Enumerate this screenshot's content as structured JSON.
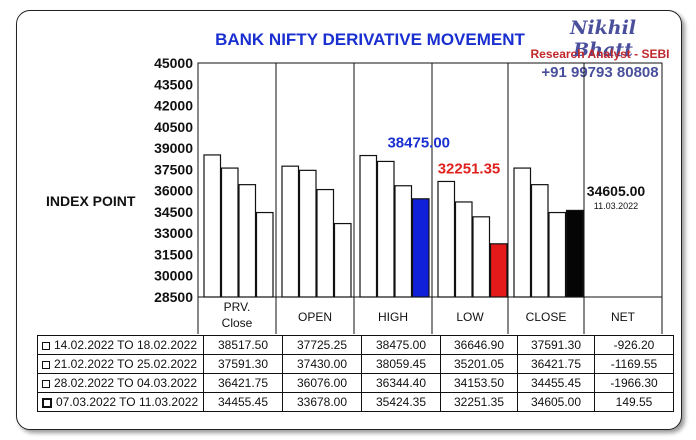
{
  "header": {
    "title": "BANK NIFTY DERIVATIVE MOVEMENT",
    "signature_name": "Nikhil Bhatt",
    "signature_role": "Research Analyst - SEBI",
    "signature_phone": "+91 99793 80808"
  },
  "chart_data": {
    "type": "bar",
    "title": "BANK NIFTY DERIVATIVE MOVEMENT",
    "ylabel": "INDEX POINT",
    "xlabel": "",
    "ylim": [
      28500,
      45000
    ],
    "yticks": [
      "45000",
      "43500",
      "42000",
      "40500",
      "39000",
      "37500",
      "36000",
      "34500",
      "33000",
      "31500",
      "30000",
      "28500"
    ],
    "categories": [
      "PRV. Close",
      "OPEN",
      "HIGH",
      "LOW",
      "CLOSE"
    ],
    "net_label": "NET",
    "series": [
      {
        "name": "14.02.2022 TO 18.02.2022",
        "values": [
          38517.5,
          37725.25,
          38475.0,
          36646.9,
          37591.3
        ],
        "net": "-926.20"
      },
      {
        "name": "21.02.2022 TO 25.02.2022",
        "values": [
          37591.3,
          37430.0,
          38059.45,
          35201.05,
          36421.75
        ],
        "net": "-1169.55"
      },
      {
        "name": "28.02.2022 TO 04.03.2022",
        "values": [
          36421.75,
          36076.0,
          36344.4,
          34153.5,
          34455.45
        ],
        "net": "-1966.30"
      },
      {
        "name": "07.03.2022 TO 11.03.2022",
        "values": [
          34455.45,
          33678.0,
          35424.35,
          32251.35,
          34605.0
        ],
        "net": "149.55"
      }
    ],
    "annotations": [
      {
        "text": "38475.00",
        "color": "#1a2fd0"
      },
      {
        "text": "32251.35",
        "color": "#e0201c"
      },
      {
        "text": "34605.00",
        "sub": "11.03.2022",
        "color": "#111111"
      }
    ],
    "highlight_colors": {
      "HIGH": "#1020d8",
      "LOW": "#e41a1a",
      "CLOSE": "#050505"
    },
    "table": {
      "rows": [
        [
          "14.02.2022 TO 18.02.2022",
          "38517.50",
          "37725.25",
          "38475.00",
          "36646.90",
          "37591.30",
          "-926.20"
        ],
        [
          "21.02.2022 TO 25.02.2022",
          "37591.30",
          "37430.00",
          "38059.45",
          "35201.05",
          "36421.75",
          "-1169.55"
        ],
        [
          "28.02.2022 TO 04.03.2022",
          "36421.75",
          "36076.00",
          "36344.40",
          "34153.50",
          "34455.45",
          "-1966.30"
        ],
        [
          "07.03.2022 TO 11.03.2022",
          "34455.45",
          "33678.00",
          "35424.35",
          "32251.35",
          "34605.00",
          "149.55"
        ]
      ]
    }
  }
}
